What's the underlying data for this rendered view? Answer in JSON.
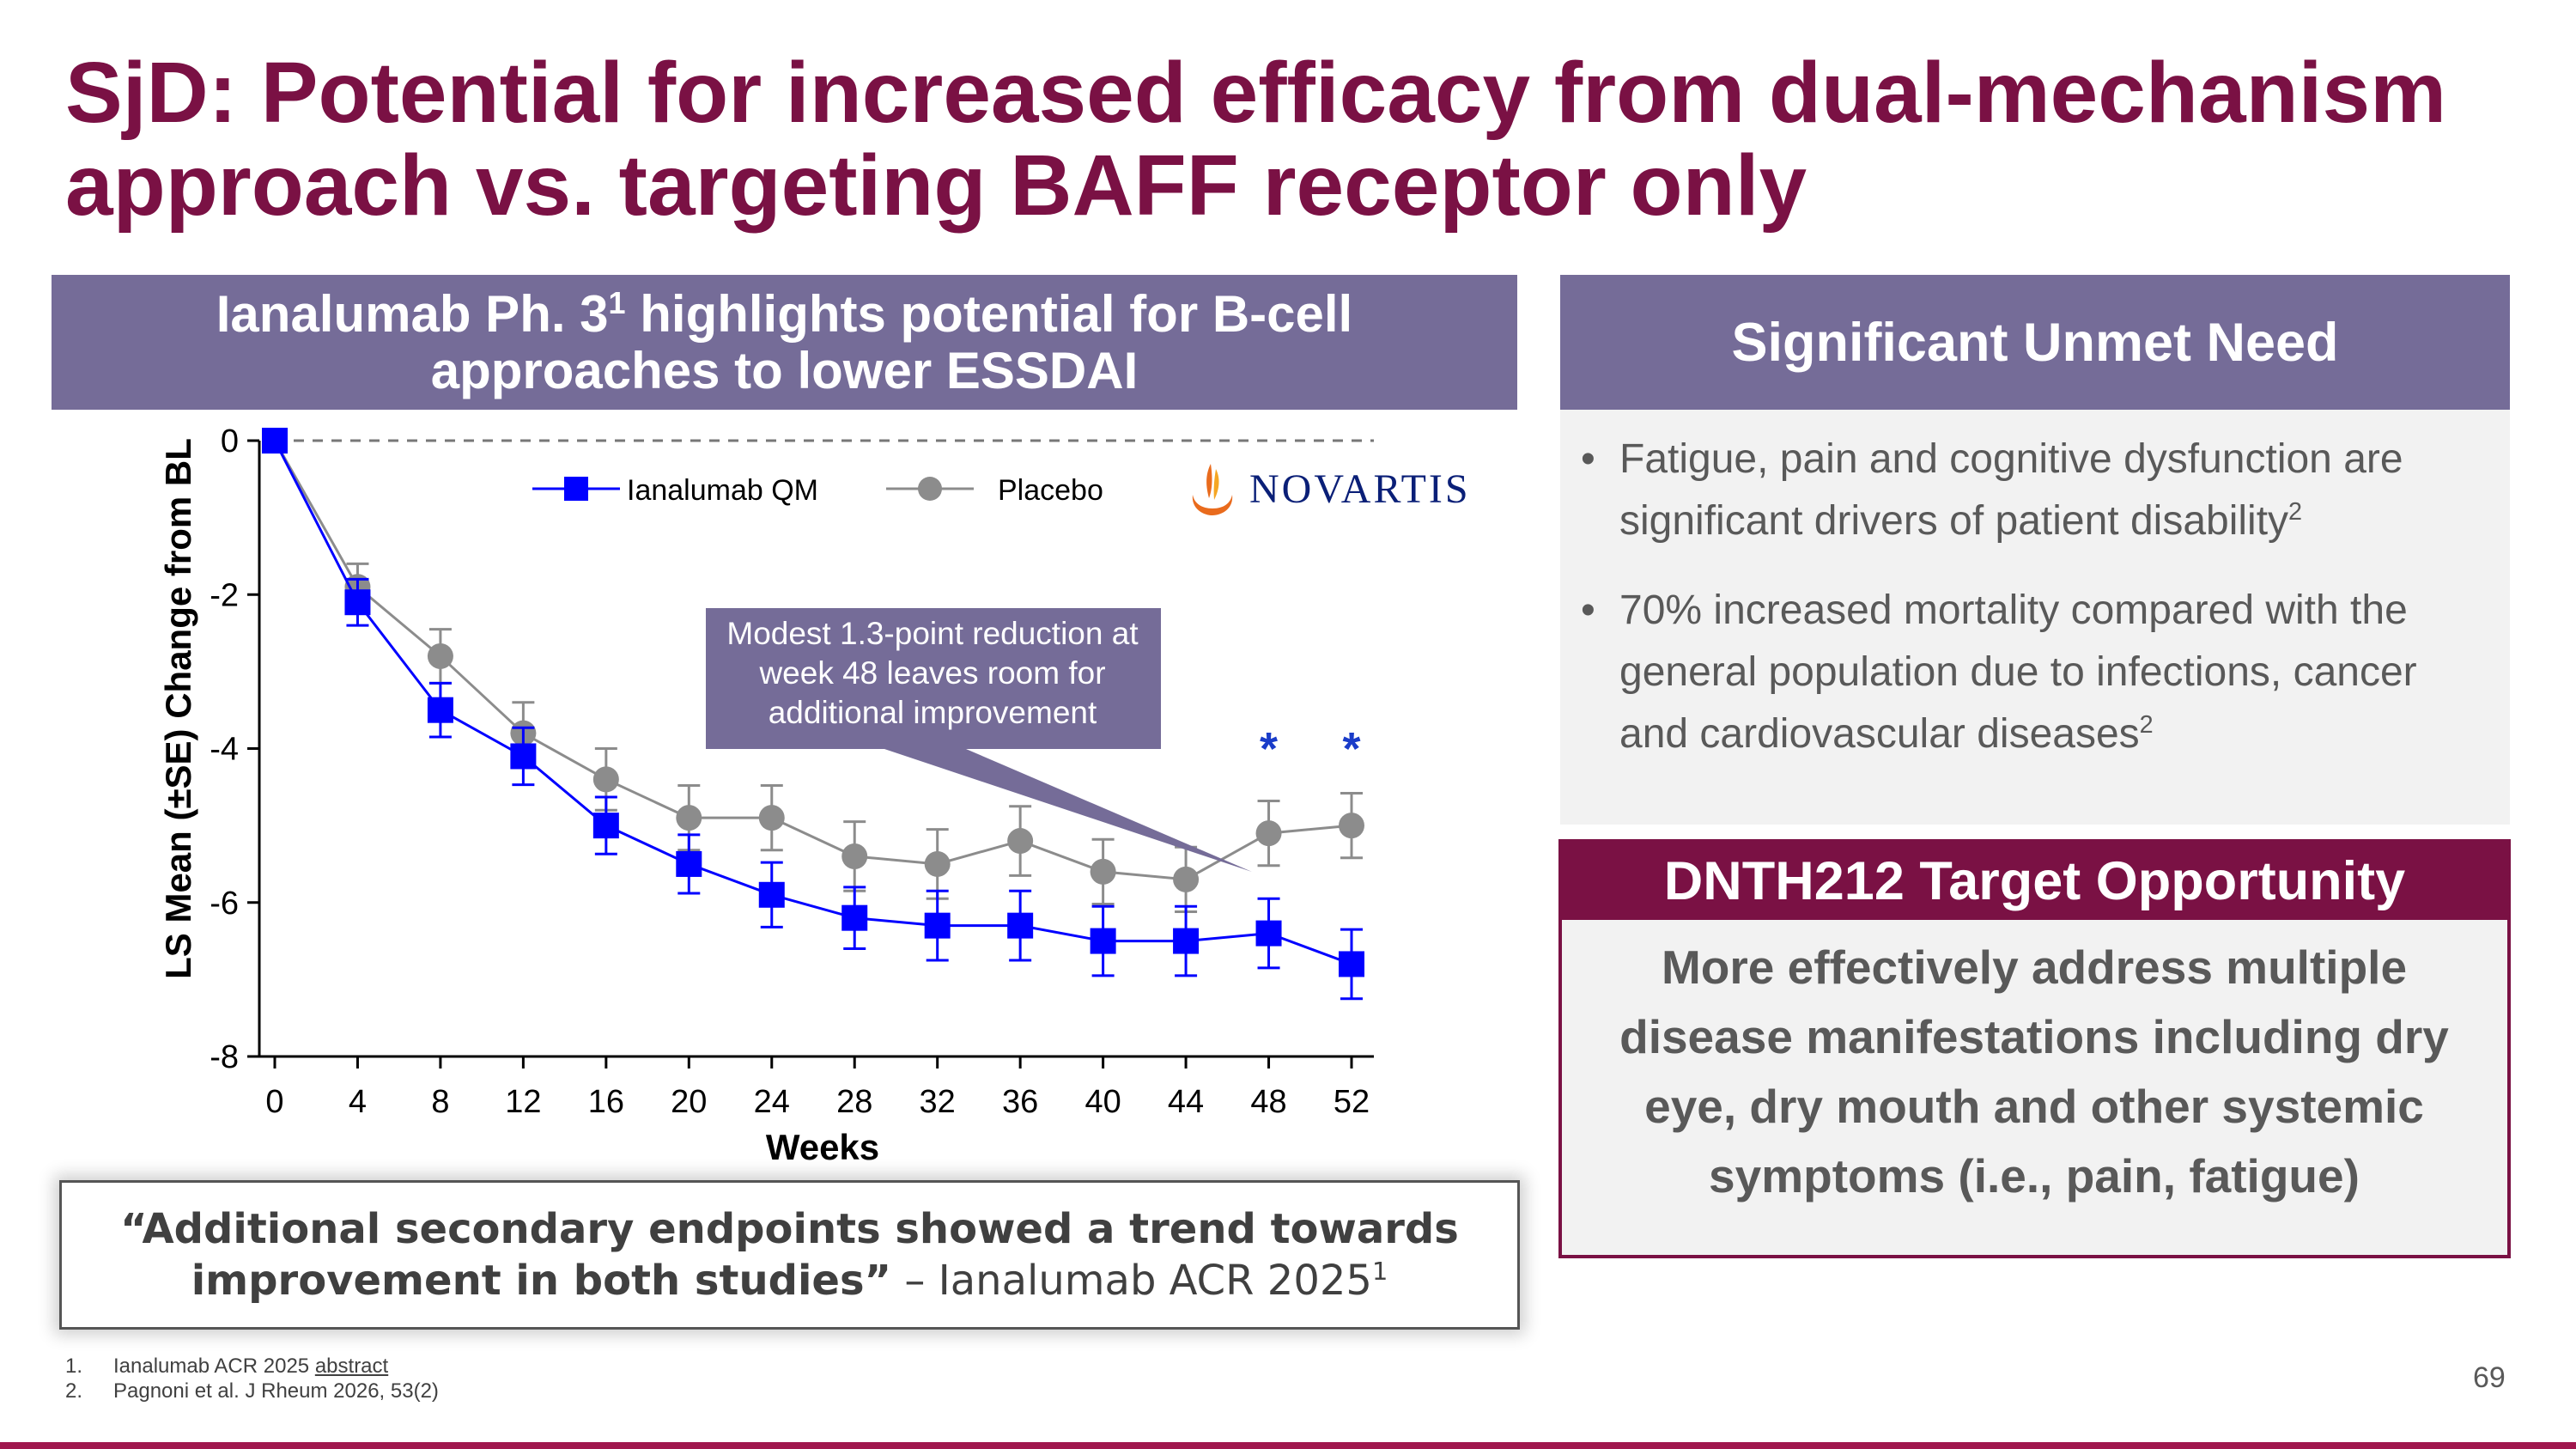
{
  "slide": {
    "title_line1": "SjD: Potential for increased efficacy from dual-mechanism",
    "title_line2": "approach vs. targeting BAFF receptor only",
    "page_number": "69"
  },
  "left_panel": {
    "header_line1_pre": "Ianalumab Ph. 3",
    "header_line1_sup": "1",
    "header_line1_post": " highlights potential for B-cell",
    "header_line2": "approaches to lower ESSDAI"
  },
  "logo": {
    "text": "NOVARTIS"
  },
  "callout": {
    "line1": "Modest 1.3-point reduction at",
    "line2": "week 48 leaves room for",
    "line3": "additional improvement"
  },
  "quote": {
    "bold_line1": "“Additional secondary endpoints showed a trend towards",
    "bold_line2": "improvement in both studies”",
    "attribution": " – Ianalumab ACR 2025",
    "attribution_sup": "1"
  },
  "unmet_need": {
    "header": "Significant Unmet Need",
    "bullet1_line1": "Fatigue, pain and cognitive dysfunction are",
    "bullet1_line2": "significant drivers of patient disability",
    "bullet1_sup": "2",
    "bullet2_line1": "70% increased mortality compared with the",
    "bullet2_line2": "general population due to infections, cancer",
    "bullet2_line3": "and cardiovascular diseases",
    "bullet2_sup": "2",
    "bullet_char": "•"
  },
  "target": {
    "header": "DNTH212 Target Opportunity",
    "line1": "More effectively address multiple",
    "line2": "disease manifestations including dry",
    "line3": "eye, dry mouth and other systemic",
    "line4": "symptoms (i.e., pain, fatigue)"
  },
  "footnotes": [
    {
      "num": "1.",
      "text": "Ianalumab ACR 2025 ",
      "link": "abstract"
    },
    {
      "num": "2.",
      "text": "Pagnoni et al. J Rheum 2026, 53(2)"
    }
  ],
  "colors": {
    "title": "#7a1144",
    "header_purple": "#756c98",
    "ianalumab": "#0000ff",
    "placebo": "#8c8c8c",
    "bar": "#a0174e"
  },
  "chart_data": {
    "type": "line",
    "xlabel": "Weeks",
    "ylabel": "LS Mean (±SE) Change from BL",
    "x": [
      0,
      4,
      8,
      12,
      16,
      20,
      24,
      28,
      32,
      36,
      40,
      44,
      48,
      52
    ],
    "xlim": [
      0,
      52
    ],
    "ylim": [
      -8,
      0
    ],
    "yticks": [
      0,
      -2,
      -4,
      -6,
      -8
    ],
    "yticklabels": [
      "0",
      "-2",
      "-4",
      "-6",
      "-8"
    ],
    "legend_position": "top",
    "series": [
      {
        "name": "Ianalumab QM",
        "marker": "square",
        "color": "#0000ff",
        "values": [
          0,
          -2.1,
          -3.5,
          -4.1,
          -5.0,
          -5.5,
          -5.9,
          -6.2,
          -6.3,
          -6.3,
          -6.5,
          -6.5,
          -6.4,
          -6.8
        ],
        "se": [
          0,
          0.3,
          0.35,
          0.37,
          0.37,
          0.38,
          0.42,
          0.4,
          0.45,
          0.45,
          0.45,
          0.45,
          0.45,
          0.45
        ]
      },
      {
        "name": "Placebo",
        "marker": "circle",
        "color": "#8c8c8c",
        "values": [
          0,
          -1.9,
          -2.8,
          -3.8,
          -4.4,
          -4.9,
          -4.9,
          -5.4,
          -5.5,
          -5.2,
          -5.6,
          -5.7,
          -5.1,
          -5.0
        ],
        "se": [
          0,
          0.3,
          0.35,
          0.4,
          0.4,
          0.42,
          0.42,
          0.45,
          0.45,
          0.45,
          0.42,
          0.42,
          0.42,
          0.42
        ]
      }
    ],
    "annotations": [
      {
        "x": 48,
        "text": "*"
      },
      {
        "x": 52,
        "text": "*"
      }
    ]
  }
}
